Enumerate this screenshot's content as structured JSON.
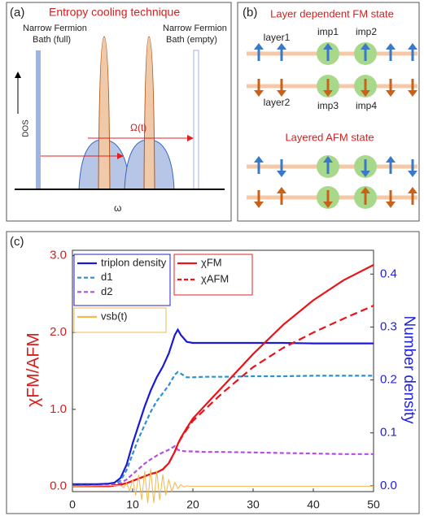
{
  "panel_a": {
    "label": "(a)",
    "title": "Entropy cooling technique",
    "bath_full": [
      "Narrow Fermion",
      "Bath (full)"
    ],
    "bath_empty": [
      "Narrow Fermion",
      "Bath (empty)"
    ],
    "y_label": "DOS",
    "arrow_label": "Ω(t)",
    "x_label": "ω"
  },
  "panel_b": {
    "label": "(b)",
    "title_fm": "Layer dependent FM state",
    "layer1": "layer1",
    "layer2": "layer2",
    "imp1": "imp1",
    "imp2": "imp2",
    "imp3": "imp3",
    "imp4": "imp4",
    "title_afm": "Layered AFM state"
  },
  "chart_data": {
    "type": "line",
    "label": "(c)",
    "y_label": "χFM/AFM",
    "y2_label": "Number density",
    "x": [
      0,
      2,
      4,
      6,
      7,
      8,
      9,
      10,
      11,
      12,
      13,
      14,
      15,
      16,
      17,
      17.5,
      18,
      19,
      20,
      22,
      25,
      30,
      35,
      40,
      45,
      50
    ],
    "xlim": [
      0,
      50
    ],
    "xticks": [
      0,
      10,
      20,
      30,
      40,
      50
    ],
    "ylim": [
      -0.07,
      3.07
    ],
    "yticks": [
      {
        "value": 0,
        "label": "0.0"
      },
      {
        "value": 1,
        "label": "1.0"
      },
      {
        "value": 2,
        "label": "2.0"
      },
      {
        "value": 3,
        "label": "3.0"
      }
    ],
    "y2lim": [
      -0.011,
      0.445
    ],
    "y2ticks": [
      {
        "value": 0,
        "label": "0.0"
      },
      0.1,
      0.2,
      0.3,
      0.4
    ],
    "series": [
      {
        "name": "triplon density",
        "color": "#1a1ad6",
        "axis": "y2",
        "dash": false,
        "values": [
          0.003,
          0.003,
          0.003,
          0.004,
          0.006,
          0.015,
          0.04,
          0.08,
          0.115,
          0.15,
          0.18,
          0.205,
          0.225,
          0.25,
          0.285,
          0.295,
          0.285,
          0.272,
          0.27,
          0.27,
          0.27,
          0.27,
          0.27,
          0.269,
          0.269,
          0.269
        ]
      },
      {
        "name": "d1",
        "color": "#2f8fd0",
        "axis": "y2",
        "dash": true,
        "values": [
          0,
          0,
          0,
          0.001,
          0.003,
          0.01,
          0.03,
          0.06,
          0.09,
          0.115,
          0.14,
          0.16,
          0.175,
          0.19,
          0.21,
          0.215,
          0.212,
          0.205,
          0.205,
          0.206,
          0.206,
          0.207,
          0.207,
          0.208,
          0.208,
          0.208
        ]
      },
      {
        "name": "d2",
        "color": "#b04fe0",
        "axis": "y2",
        "dash": true,
        "values": [
          0,
          0,
          0,
          0.001,
          0.002,
          0.005,
          0.012,
          0.022,
          0.032,
          0.042,
          0.05,
          0.057,
          0.063,
          0.068,
          0.075,
          0.068,
          0.066,
          0.065,
          0.065,
          0.064,
          0.064,
          0.063,
          0.062,
          0.061,
          0.06,
          0.06
        ]
      },
      {
        "name": "χFM",
        "color": "#e8141a",
        "dash": false,
        "values": [
          0,
          0,
          0,
          0,
          0.01,
          0.02,
          0.04,
          0.07,
          0.1,
          0.13,
          0.16,
          0.18,
          0.22,
          0.3,
          0.45,
          0.55,
          0.63,
          0.76,
          0.88,
          1.05,
          1.3,
          1.72,
          2.1,
          2.42,
          2.68,
          2.88
        ]
      },
      {
        "name": "χAFM",
        "color": "#e8141a",
        "dash": true,
        "values": [
          0,
          0,
          0,
          0,
          0.01,
          0.02,
          0.04,
          0.07,
          0.1,
          0.13,
          0.16,
          0.18,
          0.22,
          0.3,
          0.45,
          0.55,
          0.62,
          0.74,
          0.85,
          1.0,
          1.22,
          1.55,
          1.8,
          2.0,
          2.18,
          2.35
        ]
      },
      {
        "name": "vsb(t)",
        "color": "#f2b84b",
        "dash": false,
        "x": [
          0,
          8,
          8.5,
          9,
          9.5,
          10,
          10.5,
          11,
          11.5,
          12,
          12.5,
          13,
          13.5,
          14,
          14.5,
          15,
          15.5,
          16,
          16.5,
          17,
          17.5,
          18,
          18.5,
          19,
          19.5,
          20,
          50
        ],
        "values": [
          0,
          0.01,
          -0.02,
          0.04,
          -0.06,
          0.09,
          -0.12,
          0.15,
          -0.18,
          0.2,
          -0.22,
          0.23,
          -0.22,
          0.2,
          -0.18,
          0.15,
          -0.12,
          0.09,
          -0.07,
          0.05,
          -0.03,
          0.02,
          -0.01,
          0.005,
          0,
          0,
          0
        ]
      }
    ]
  }
}
